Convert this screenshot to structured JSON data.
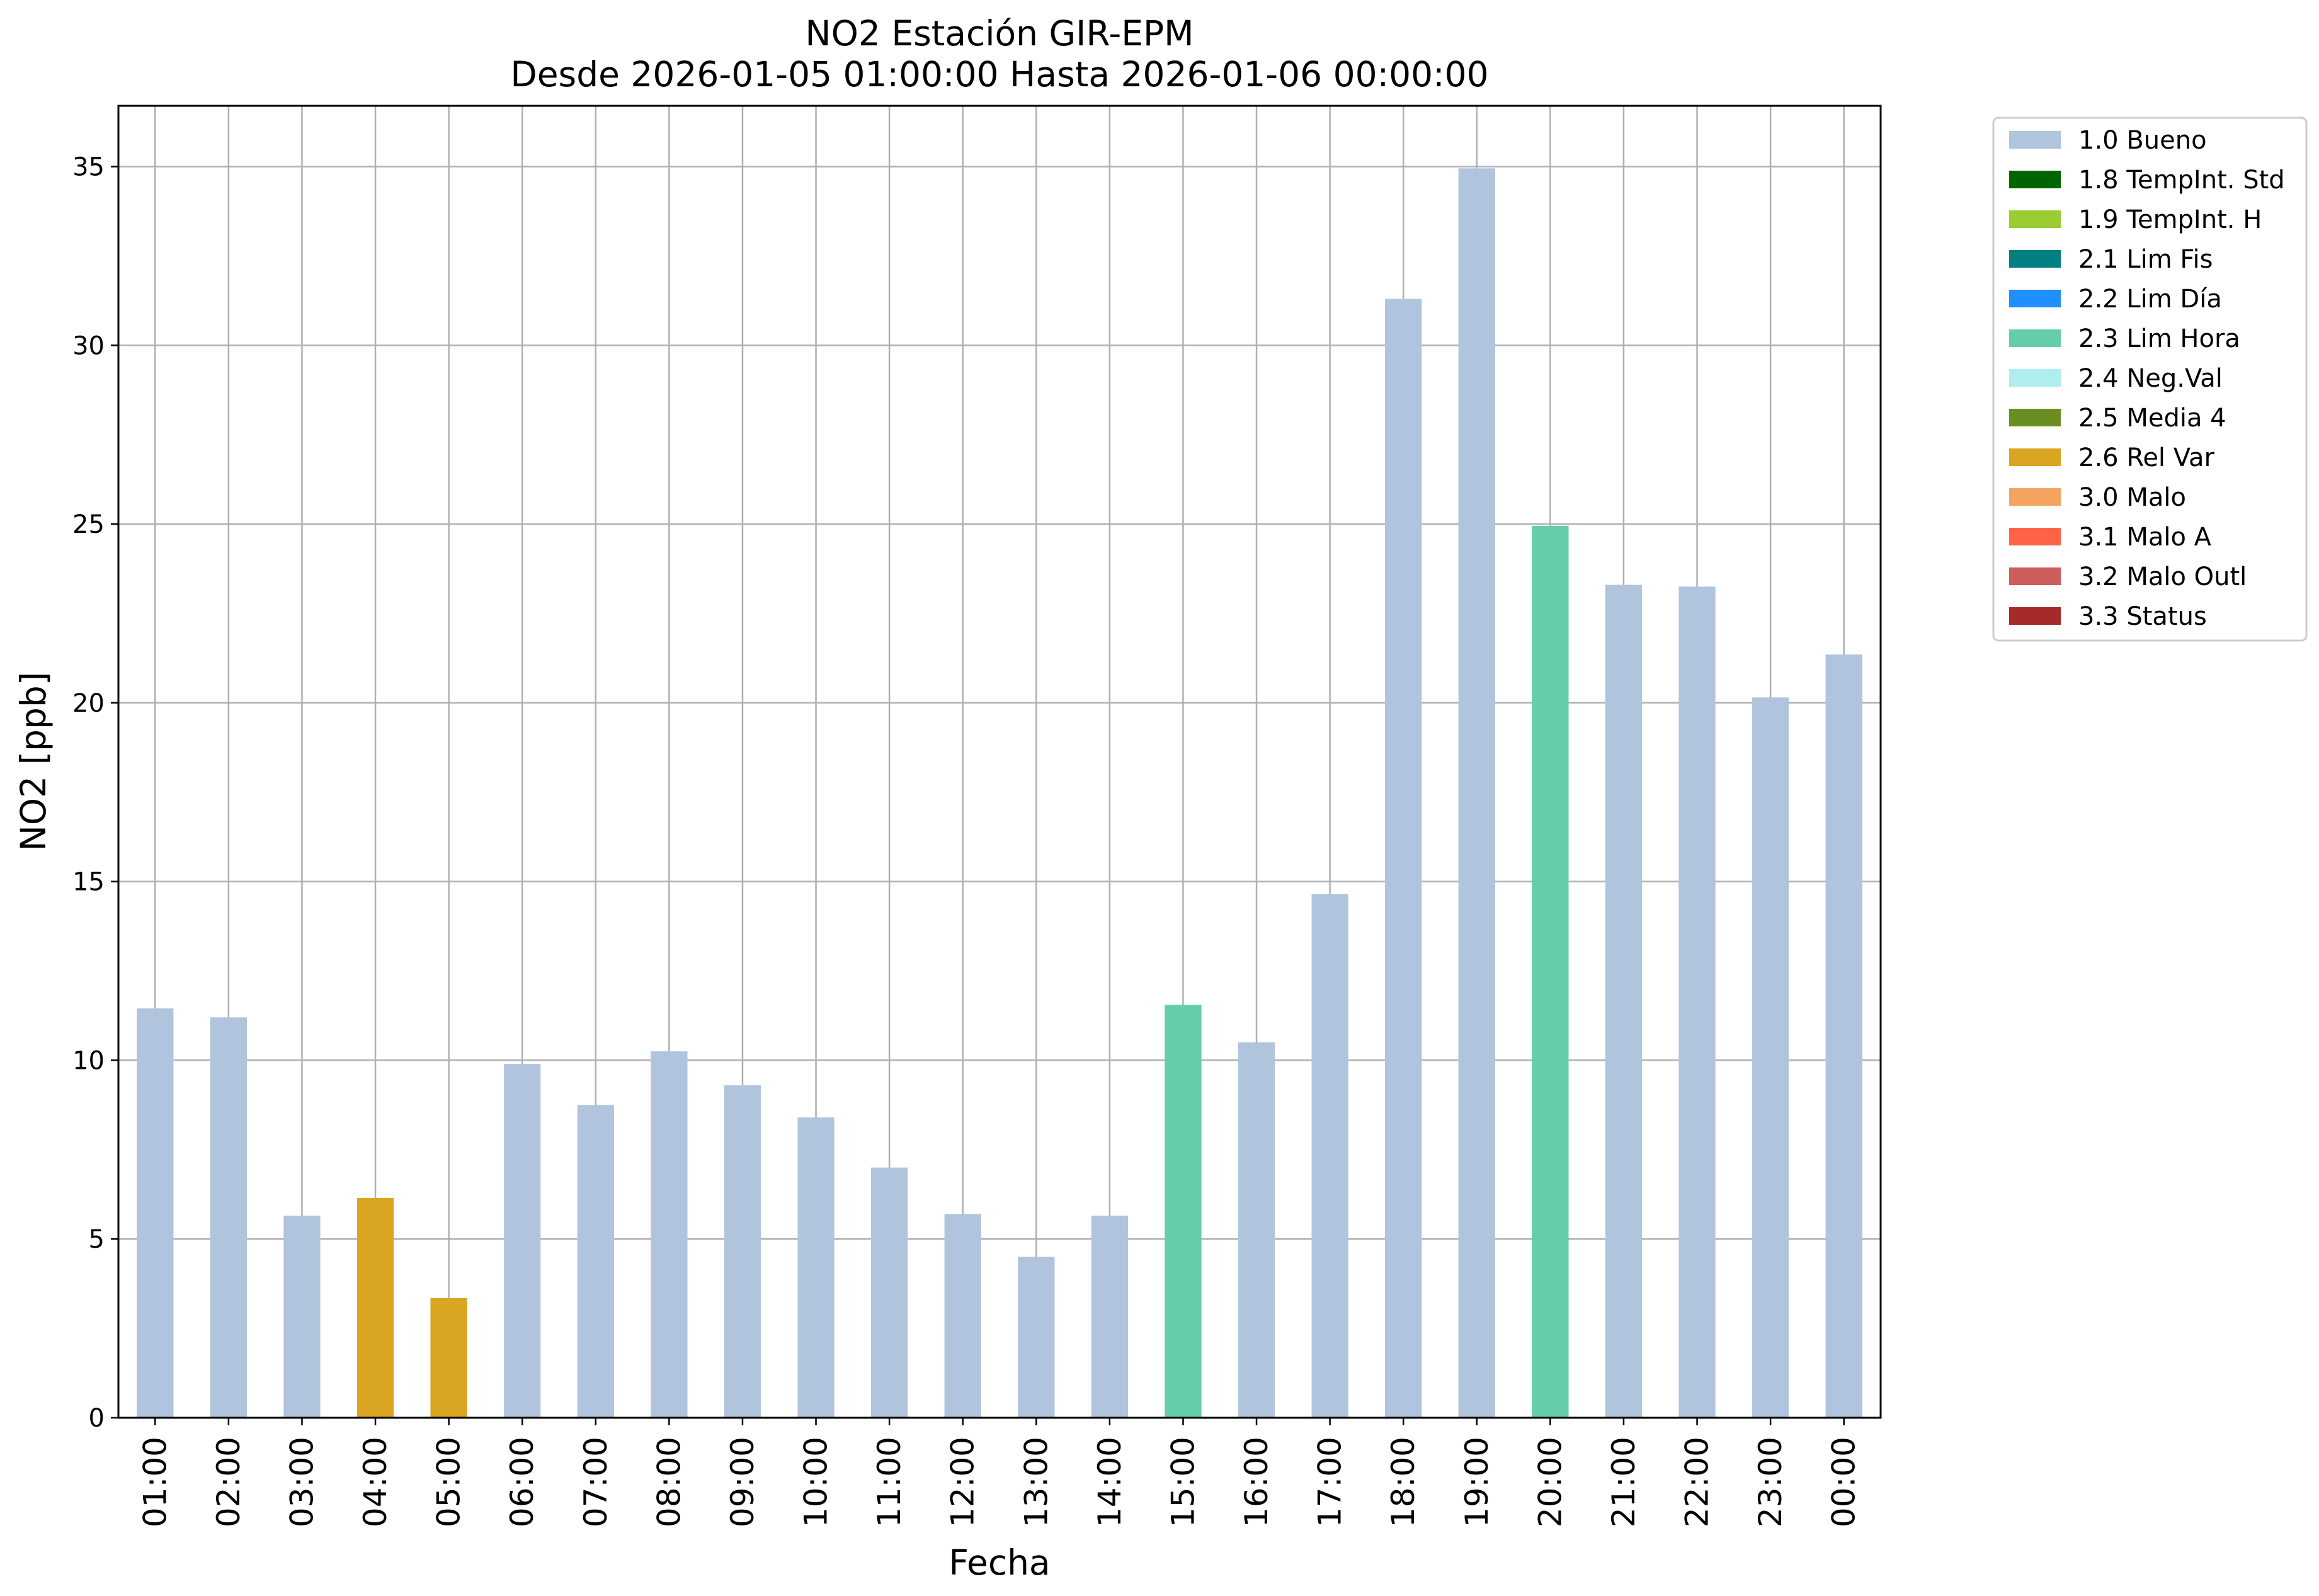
{
  "chart_data": {
    "type": "bar",
    "title": "NO2 Estación GIR-EPM",
    "subtitle": "Desde 2026-01-05 01:00:00 Hasta 2026-01-06 00:00:00",
    "xlabel": "Fecha",
    "ylabel": "NO2 [ppb]",
    "ylim": [
      0,
      36.7
    ],
    "yticks": [
      0,
      5,
      10,
      15,
      20,
      25,
      30,
      35
    ],
    "grid": true,
    "legend_position": "outside-right",
    "categories": [
      "01:00",
      "02:00",
      "03:00",
      "04:00",
      "05:00",
      "06:00",
      "07:00",
      "08:00",
      "09:00",
      "10:00",
      "11:00",
      "12:00",
      "13:00",
      "14:00",
      "15:00",
      "16:00",
      "17:00",
      "18:00",
      "19:00",
      "20:00",
      "21:00",
      "22:00",
      "23:00",
      "00:00"
    ],
    "values": [
      11.45,
      11.2,
      5.65,
      6.15,
      3.35,
      9.9,
      8.75,
      10.25,
      9.3,
      8.4,
      7.0,
      5.7,
      4.5,
      5.65,
      11.55,
      10.5,
      14.65,
      31.3,
      34.95,
      24.95,
      23.3,
      23.25,
      20.15,
      21.35
    ],
    "flags": [
      "1.0 Bueno",
      "1.0 Bueno",
      "1.0 Bueno",
      "2.6 Rel Var",
      "2.6 Rel Var",
      "1.0 Bueno",
      "1.0 Bueno",
      "1.0 Bueno",
      "1.0 Bueno",
      "1.0 Bueno",
      "1.0 Bueno",
      "1.0 Bueno",
      "1.0 Bueno",
      "1.0 Bueno",
      "2.3 Lim Hora",
      "1.0 Bueno",
      "1.0 Bueno",
      "1.0 Bueno",
      "1.0 Bueno",
      "2.3 Lim Hora",
      "1.0 Bueno",
      "1.0 Bueno",
      "1.0 Bueno",
      "1.0 Bueno"
    ],
    "legend": [
      {
        "label": "1.0 Bueno",
        "color": "#b0c4de"
      },
      {
        "label": "1.8 TempInt. Std",
        "color": "#006400"
      },
      {
        "label": "1.9 TempInt. H",
        "color": "#9acd32"
      },
      {
        "label": "2.1 Lim Fis",
        "color": "#008080"
      },
      {
        "label": "2.2 Lim Día",
        "color": "#1e90ff"
      },
      {
        "label": "2.3 Lim Hora",
        "color": "#66cdaa"
      },
      {
        "label": "2.4 Neg.Val",
        "color": "#afeeee"
      },
      {
        "label": "2.5 Media 4",
        "color": "#6b8e23"
      },
      {
        "label": "2.6 Rel Var",
        "color": "#daa520"
      },
      {
        "label": "3.0 Malo",
        "color": "#f4a460"
      },
      {
        "label": "3.1 Malo A",
        "color": "#ff6347"
      },
      {
        "label": "3.2 Malo Outl",
        "color": "#cd5c5c"
      },
      {
        "label": "3.3 Status",
        "color": "#a52a2a"
      }
    ]
  }
}
